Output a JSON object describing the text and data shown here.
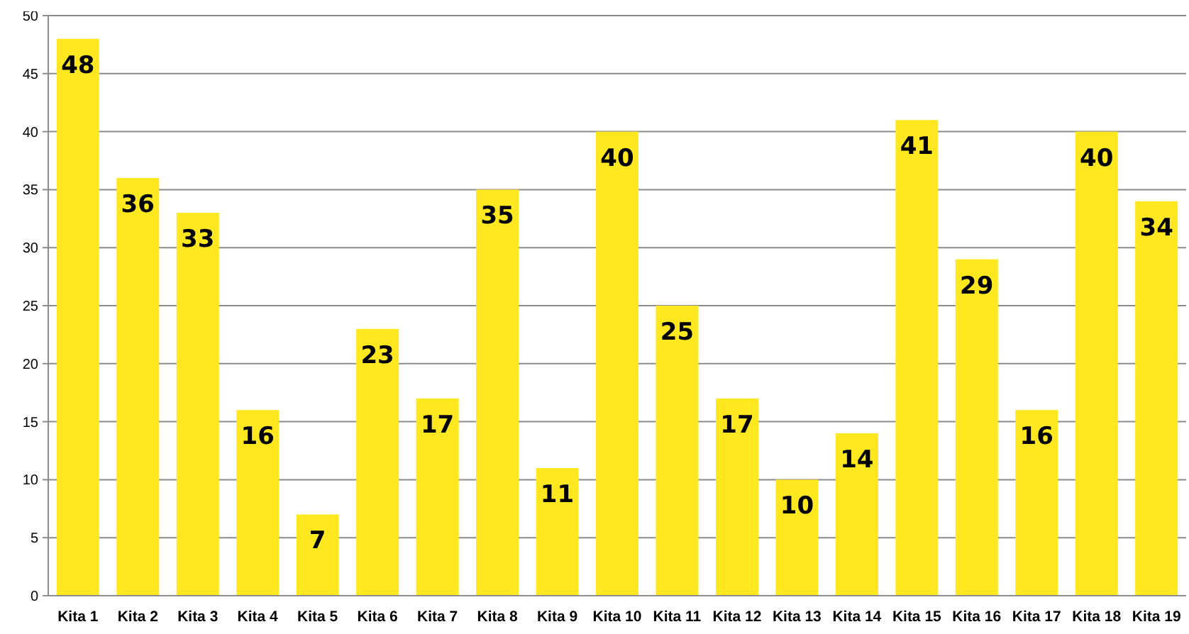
{
  "chart_data": {
    "type": "bar",
    "categories": [
      "Kita 1",
      "Kita 2",
      "Kita 3",
      "Kita 4",
      "Kita 5",
      "Kita 6",
      "Kita 7",
      "Kita 8",
      "Kita 9",
      "Kita 10",
      "Kita 11",
      "Kita 12",
      "Kita 13",
      "Kita 14",
      "Kita 15",
      "Kita 16",
      "Kita 17",
      "Kita 18",
      "Kita 19"
    ],
    "values": [
      48,
      36,
      33,
      16,
      7,
      23,
      17,
      35,
      11,
      40,
      25,
      17,
      10,
      14,
      41,
      29,
      16,
      40,
      34
    ],
    "color": "#ffe81f",
    "ylim": [
      0,
      50
    ],
    "yticks": [
      0,
      5,
      10,
      15,
      20,
      25,
      30,
      35,
      40,
      45,
      50
    ],
    "grid": "y",
    "data_labels": true
  }
}
